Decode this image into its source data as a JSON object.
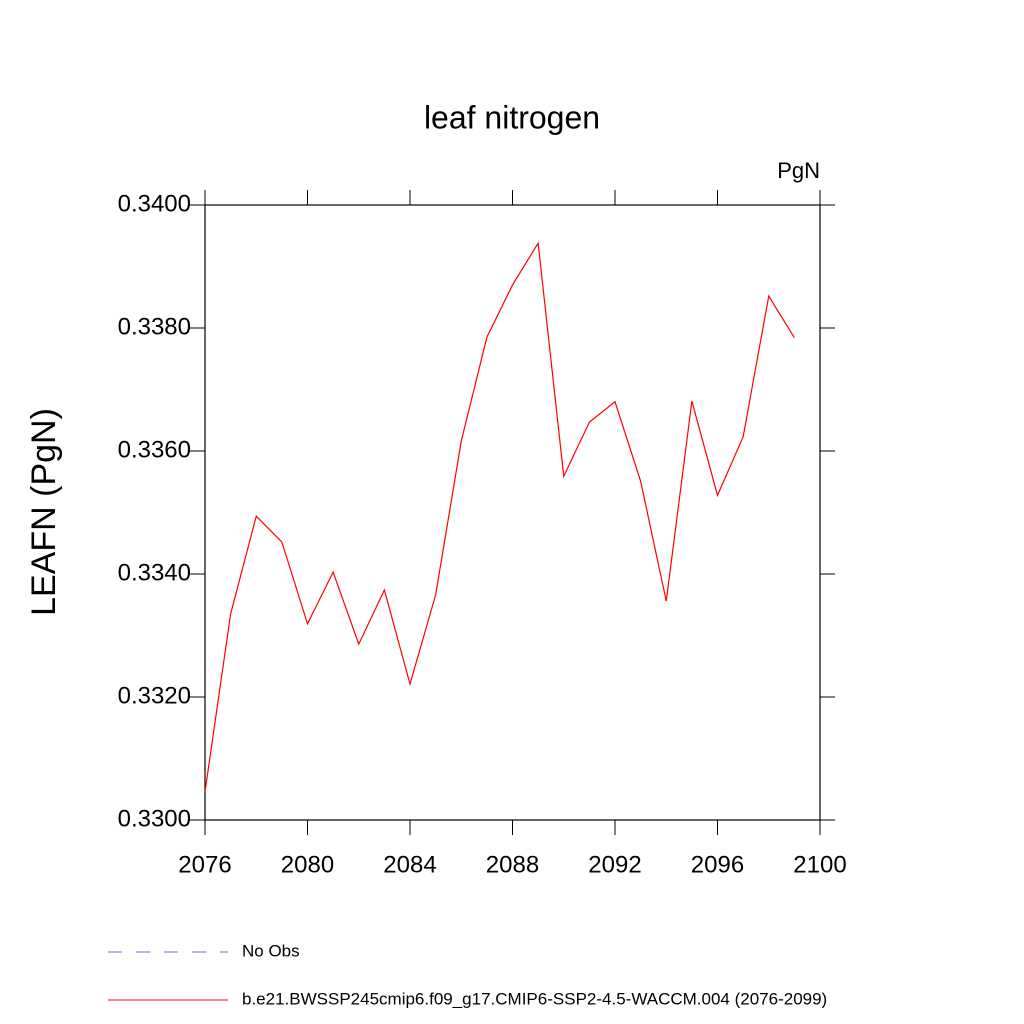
{
  "chart_data": {
    "type": "line",
    "title": "leaf nitrogen",
    "units": "PgN",
    "y_label": "LEAFN  (PgN)",
    "x": [
      2076,
      2077,
      2078,
      2079,
      2080,
      2081,
      2082,
      2083,
      2084,
      2085,
      2086,
      2087,
      2088,
      2089,
      2090,
      2091,
      2092,
      2093,
      2094,
      2095,
      2096,
      2097,
      2098,
      2099
    ],
    "series": [
      {
        "name": "No Obs",
        "color": "#7b68c8",
        "dash": true,
        "values": [
          null,
          null,
          null,
          null,
          null,
          null,
          null,
          null,
          null,
          null,
          null,
          null,
          null,
          null,
          null,
          null,
          null,
          null,
          null,
          null,
          null,
          null,
          null,
          null
        ]
      },
      {
        "name": "b.e21.BWSSP245cmip6.f09_g17.CMIP6-SSP2-4.5-WACCM.004 (2076-2099)",
        "color": "#ff0000",
        "dash": false,
        "values": [
          0.33046,
          0.33335,
          0.33494,
          0.33452,
          0.33319,
          0.33403,
          0.33286,
          0.33374,
          0.33221,
          0.33366,
          0.33616,
          0.33785,
          0.3387,
          0.33938,
          0.33559,
          0.33647,
          0.3368,
          0.33551,
          0.33356,
          0.33681,
          0.33528,
          0.33623,
          0.33852,
          0.33784
        ]
      }
    ],
    "xlim": [
      2076,
      2100
    ],
    "xticks": [
      2076,
      2080,
      2084,
      2088,
      2092,
      2096,
      2100
    ],
    "ylim": [
      0.33,
      0.34
    ],
    "yticks": [
      {
        "value": 0.33,
        "label": "0.3300"
      },
      {
        "value": 0.332,
        "label": "0.3320"
      },
      {
        "value": 0.334,
        "label": "0.3340"
      },
      {
        "value": 0.336,
        "label": "0.3360"
      },
      {
        "value": 0.338,
        "label": "0.3380"
      },
      {
        "value": 0.34,
        "label": "0.3400"
      }
    ]
  }
}
